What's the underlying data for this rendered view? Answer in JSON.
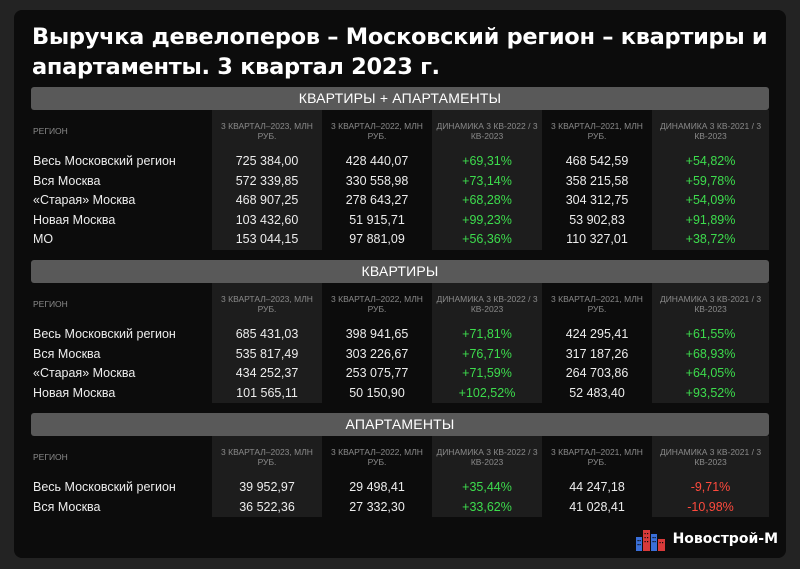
{
  "title": "Выручка девелоперов – Московский регион – квартиры и апартаменты. 3 квартал 2023 г.",
  "columns": {
    "region": "РЕГИОН",
    "q3_2023": "3 КВАРТАЛ–2023, МЛН РУБ.",
    "q3_2022": "3 КВАРТАЛ–2022, МЛН РУБ.",
    "dyn_2022": "ДИНАМИКА 3 КВ-2022 / 3 КВ-2023",
    "q3_2021": "3 КВАРТАЛ–2021, МЛН РУБ.",
    "dyn_2021": "ДИНАМИКА 3 КВ-2021 / 3 КВ-2023"
  },
  "sections": [
    {
      "title": "КВАРТИРЫ + АПАРТАМЕНТЫ",
      "rows": [
        {
          "region": "Весь Московский регион",
          "q3_2023": "725 384,00",
          "q3_2022": "428 440,07",
          "dyn_2022": "+69,31%",
          "q3_2021": "468 542,59",
          "dyn_2021": "+54,82%"
        },
        {
          "region": "Вся Москва",
          "q3_2023": "572 339,85",
          "q3_2022": "330 558,98",
          "dyn_2022": "+73,14%",
          "q3_2021": "358 215,58",
          "dyn_2021": "+59,78%"
        },
        {
          "region": "«Старая» Москва",
          "q3_2023": "468 907,25",
          "q3_2022": "278 643,27",
          "dyn_2022": "+68,28%",
          "q3_2021": "304 312,75",
          "dyn_2021": "+54,09%"
        },
        {
          "region": "Новая Москва",
          "q3_2023": "103 432,60",
          "q3_2022": "51 915,71",
          "dyn_2022": "+99,23%",
          "q3_2021": "53 902,83",
          "dyn_2021": "+91,89%"
        },
        {
          "region": "МО",
          "q3_2023": "153 044,15",
          "q3_2022": "97 881,09",
          "dyn_2022": "+56,36%",
          "q3_2021": "110 327,01",
          "dyn_2021": "+38,72%"
        }
      ]
    },
    {
      "title": "КВАРТИРЫ",
      "rows": [
        {
          "region": "Весь Московский регион",
          "q3_2023": "685 431,03",
          "q3_2022": "398 941,65",
          "dyn_2022": "+71,81%",
          "q3_2021": "424 295,41",
          "dyn_2021": "+61,55%"
        },
        {
          "region": "Вся Москва",
          "q3_2023": "535 817,49",
          "q3_2022": "303 226,67",
          "dyn_2022": "+76,71%",
          "q3_2021": "317 187,26",
          "dyn_2021": "+68,93%"
        },
        {
          "region": "«Старая» Москва",
          "q3_2023": "434 252,37",
          "q3_2022": "253 075,77",
          "dyn_2022": "+71,59%",
          "q3_2021": "264 703,86",
          "dyn_2021": "+64,05%"
        },
        {
          "region": "Новая Москва",
          "q3_2023": "101 565,11",
          "q3_2022": "50 150,90",
          "dyn_2022": "+102,52%",
          "q3_2021": "52 483,40",
          "dyn_2021": "+93,52%"
        }
      ]
    },
    {
      "title": "АПАРТАМЕНТЫ",
      "rows": [
        {
          "region": "Весь Московский регион",
          "q3_2023": "39 952,97",
          "q3_2022": "29 498,41",
          "dyn_2022": "+35,44%",
          "q3_2021": "44 247,18",
          "dyn_2021": "-9,71%"
        },
        {
          "region": "Вся Москва",
          "q3_2023": "36 522,36",
          "q3_2022": "27 332,30",
          "dyn_2022": "+33,62%",
          "q3_2021": "41 028,41",
          "dyn_2021": "-10,98%"
        }
      ]
    }
  ],
  "colors": {
    "positive": "#3ddc4d",
    "negative": "#ff4a3d",
    "background": "#0c0c0c",
    "section_header": "#595959"
  },
  "logo": {
    "text": "Новострой-М",
    "icon": "buildings-icon"
  }
}
